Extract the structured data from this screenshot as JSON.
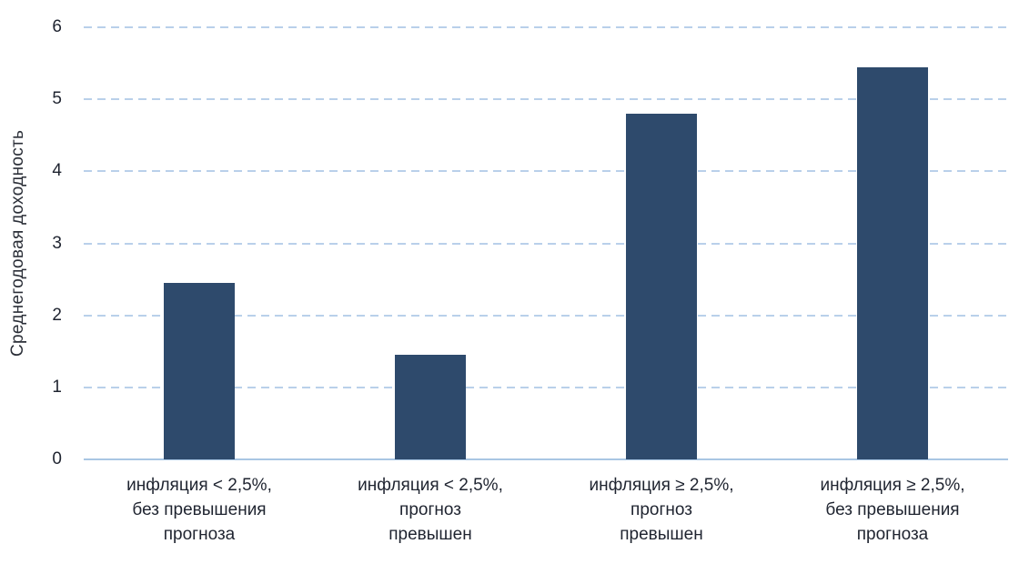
{
  "chart_data": {
    "type": "bar",
    "title": "",
    "xlabel": "",
    "ylabel": "Среднегодовая доходность",
    "ylim": [
      0,
      6
    ],
    "yticks": [
      0,
      1,
      2,
      3,
      4,
      5,
      6
    ],
    "grid": "horizontal-dashed",
    "legend": "none",
    "categories": [
      "инфляция < 2,5%,\nбез превышения\nпрогноза",
      "инфляция < 2,5%,\nпрогноз\nпревышен",
      "инфляция ≥ 2,5%,\nпрогноз\nпревышен",
      "инфляция ≥ 2,5%,\nбез превышения\nпрогноза"
    ],
    "values": [
      2.45,
      1.45,
      4.8,
      5.45
    ],
    "colors": {
      "bar": "#2e4a6c",
      "gridline": "#b9d0ea",
      "baseline": "#a9c6e3",
      "text": "#1f2430"
    }
  }
}
